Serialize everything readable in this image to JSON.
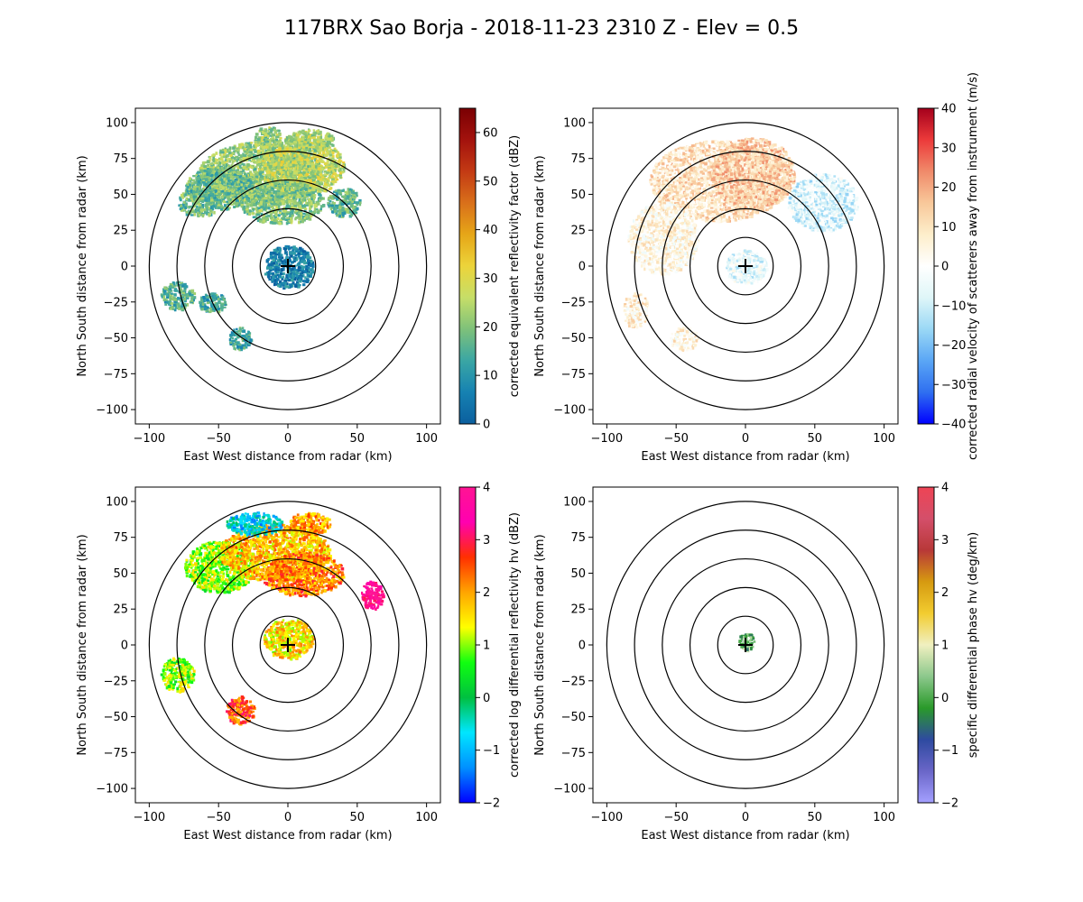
{
  "figure": {
    "title": "117BRX Sao Borja - 2018-11-23 2310 Z -  Elev = 0.5"
  },
  "chart_data": [
    {
      "type": "heatmap",
      "panel": "top-left",
      "field": "reflectivity",
      "xlabel": "East West distance from radar (km)",
      "ylabel": "North South distance from radar (km)",
      "xlim": [
        -110,
        110
      ],
      "ylim": [
        -110,
        110
      ],
      "xticks": [
        -100,
        -50,
        0,
        50,
        100
      ],
      "yticks": [
        -100,
        -75,
        -50,
        -25,
        0,
        25,
        50,
        75,
        100
      ],
      "range_rings_km": [
        20,
        40,
        60,
        80,
        100
      ],
      "radar_marker": [
        0,
        0
      ],
      "colorbar": {
        "label": "corrected equivalent reflectivity factor (dBZ)",
        "range": [
          0,
          65
        ],
        "ticks": [
          0,
          10,
          20,
          30,
          40,
          50,
          60
        ],
        "stops": [
          "#0b5f9e",
          "#1682b2",
          "#3aa6a4",
          "#7ec17a",
          "#c6de68",
          "#ecd43a",
          "#e6a618",
          "#d9701a",
          "#c33a14",
          "#a3120d",
          "#7a0003"
        ]
      },
      "echoes": [
        {
          "x": -20,
          "y": 65,
          "rx": 45,
          "ry": 22,
          "v": 22
        },
        {
          "x": 10,
          "y": 70,
          "rx": 30,
          "ry": 20,
          "v": 26
        },
        {
          "x": -50,
          "y": 55,
          "rx": 25,
          "ry": 15,
          "v": 18
        },
        {
          "x": -5,
          "y": 45,
          "rx": 30,
          "ry": 15,
          "v": 20
        },
        {
          "x": 0,
          "y": 0,
          "rx": 18,
          "ry": 15,
          "v": 6
        },
        {
          "x": -65,
          "y": 45,
          "rx": 15,
          "ry": 10,
          "v": 18
        },
        {
          "x": 40,
          "y": 45,
          "rx": 12,
          "ry": 10,
          "v": 16
        },
        {
          "x": -80,
          "y": -20,
          "rx": 12,
          "ry": 10,
          "v": 16
        },
        {
          "x": -55,
          "y": -25,
          "rx": 10,
          "ry": 7,
          "v": 14
        },
        {
          "x": -35,
          "y": -50,
          "rx": 8,
          "ry": 8,
          "v": 14
        },
        {
          "x": 15,
          "y": 88,
          "rx": 18,
          "ry": 8,
          "v": 24
        },
        {
          "x": -15,
          "y": 90,
          "rx": 10,
          "ry": 8,
          "v": 22
        }
      ]
    },
    {
      "type": "heatmap",
      "panel": "top-right",
      "field": "velocity",
      "xlabel": "East West distance from radar (km)",
      "ylabel": "North South distance from radar (km)",
      "xlim": [
        -110,
        110
      ],
      "ylim": [
        -110,
        110
      ],
      "xticks": [
        -100,
        -50,
        0,
        50,
        100
      ],
      "yticks": [
        -100,
        -75,
        -50,
        -25,
        0,
        25,
        50,
        75,
        100
      ],
      "range_rings_km": [
        20,
        40,
        60,
        80,
        100
      ],
      "radar_marker": [
        0,
        0
      ],
      "colorbar": {
        "label": "corrected radial velocity of scatterers away from instrument (m/s)",
        "range": [
          -40,
          40
        ],
        "ticks": [
          -40,
          -30,
          -20,
          -10,
          0,
          10,
          20,
          30,
          40
        ],
        "stops": [
          "#0000ff",
          "#2f6ff0",
          "#5aa6f5",
          "#9ad8f5",
          "#dff6f8",
          "#ffffff",
          "#fdeecb",
          "#f8c89a",
          "#f08a6a",
          "#ec3a3a",
          "#a5001c"
        ]
      },
      "echoes": [
        {
          "x": -20,
          "y": 60,
          "rx": 50,
          "ry": 28,
          "v": 10
        },
        {
          "x": 5,
          "y": 65,
          "rx": 30,
          "ry": 25,
          "v": 14
        },
        {
          "x": -60,
          "y": 20,
          "rx": 25,
          "ry": 25,
          "v": 4
        },
        {
          "x": 55,
          "y": 45,
          "rx": 25,
          "ry": 20,
          "v": -8
        },
        {
          "x": 0,
          "y": 0,
          "rx": 15,
          "ry": 12,
          "v": -6
        },
        {
          "x": -80,
          "y": -30,
          "rx": 10,
          "ry": 12,
          "v": 6
        },
        {
          "x": -45,
          "y": -50,
          "rx": 10,
          "ry": 8,
          "v": 5
        }
      ]
    },
    {
      "type": "heatmap",
      "panel": "bottom-left",
      "field": "differential_reflectivity",
      "xlabel": "East West distance from radar (km)",
      "ylabel": "North South distance from radar (km)",
      "xlim": [
        -110,
        110
      ],
      "ylim": [
        -110,
        110
      ],
      "xticks": [
        -100,
        -50,
        0,
        50,
        100
      ],
      "yticks": [
        -100,
        -75,
        -50,
        -25,
        0,
        25,
        50,
        75,
        100
      ],
      "range_rings_km": [
        20,
        40,
        60,
        80,
        100
      ],
      "radar_marker": [
        0,
        0
      ],
      "colorbar": {
        "label": "corrected log differential reflectivity hv (dBZ)",
        "range": [
          -2,
          4
        ],
        "ticks": [
          -2,
          -1,
          0,
          1,
          2,
          3,
          4
        ],
        "stops": [
          "#0000ff",
          "#0090ff",
          "#00e6ff",
          "#00c040",
          "#10ff10",
          "#ffff00",
          "#ffa500",
          "#ff3000",
          "#ff00b0",
          "#ff1493"
        ]
      },
      "echoes": [
        {
          "x": -50,
          "y": 55,
          "rx": 25,
          "ry": 18,
          "v": 1.0
        },
        {
          "x": -10,
          "y": 65,
          "rx": 40,
          "ry": 20,
          "v": 1.8
        },
        {
          "x": 10,
          "y": 50,
          "rx": 30,
          "ry": 15,
          "v": 2.2
        },
        {
          "x": -25,
          "y": 85,
          "rx": 20,
          "ry": 8,
          "v": -0.8
        },
        {
          "x": 0,
          "y": 5,
          "rx": 18,
          "ry": 14,
          "v": 1.6
        },
        {
          "x": -80,
          "y": -20,
          "rx": 12,
          "ry": 12,
          "v": 1.0
        },
        {
          "x": -35,
          "y": -45,
          "rx": 10,
          "ry": 10,
          "v": 2.5
        },
        {
          "x": 60,
          "y": 35,
          "rx": 8,
          "ry": 10,
          "v": 3.6
        },
        {
          "x": 15,
          "y": 85,
          "rx": 15,
          "ry": 8,
          "v": 2.0
        }
      ]
    },
    {
      "type": "heatmap",
      "panel": "bottom-right",
      "field": "specific_differential_phase",
      "xlabel": "East West distance from radar (km)",
      "ylabel": "North South distance from radar (km)",
      "xlim": [
        -110,
        110
      ],
      "ylim": [
        -110,
        110
      ],
      "xticks": [
        -100,
        -50,
        0,
        50,
        100
      ],
      "yticks": [
        -100,
        -75,
        -50,
        -25,
        0,
        25,
        50,
        75,
        100
      ],
      "range_rings_km": [
        20,
        40,
        60,
        80,
        100
      ],
      "radar_marker": [
        0,
        0
      ],
      "colorbar": {
        "label": "specific differential phase hv (deg/km)",
        "range": [
          -2,
          4
        ],
        "ticks": [
          -2,
          -1,
          0,
          1,
          2,
          3,
          4
        ],
        "stops": [
          "#a4a0ff",
          "#6a66c8",
          "#2e4aa0",
          "#2a9a2a",
          "#8cc88c",
          "#f0f0c0",
          "#f2cc30",
          "#d69a10",
          "#b83838",
          "#d44f6a",
          "#ee4455"
        ]
      },
      "echoes": [
        {
          "x": 0,
          "y": 3,
          "rx": 6,
          "ry": 6,
          "v": 0.2
        }
      ]
    }
  ]
}
